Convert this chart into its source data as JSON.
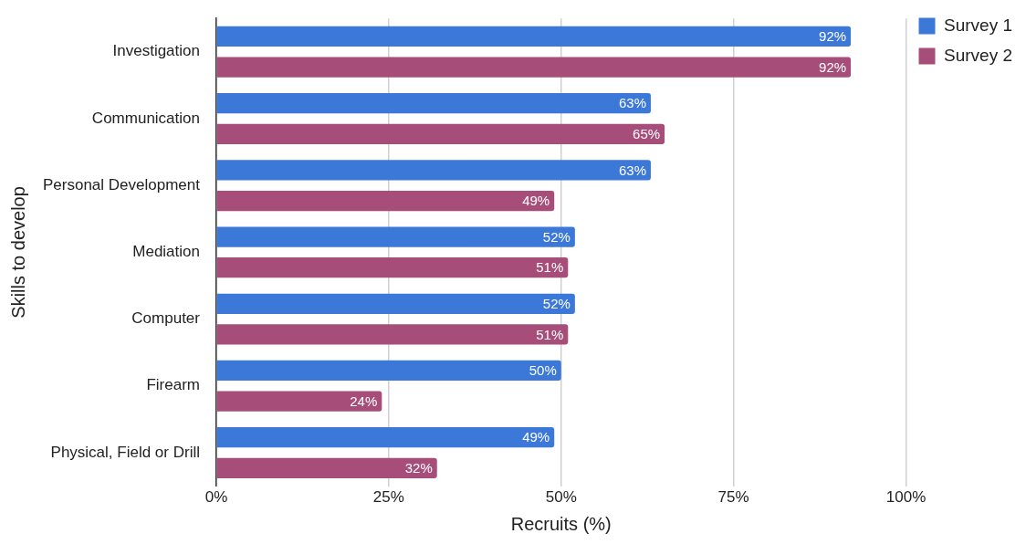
{
  "chart_data": {
    "type": "bar",
    "orientation": "horizontal",
    "xlabel": "Recruits (%)",
    "ylabel": "Skills to develop",
    "categories": [
      "Investigation",
      "Communication",
      "Personal Development",
      "Mediation",
      "Computer",
      "Firearm",
      "Physical, Field or Drill"
    ],
    "series": [
      {
        "name": "Survey 1",
        "color": "#3c78d8",
        "values": [
          92,
          63,
          63,
          52,
          52,
          50,
          49
        ],
        "value_labels": [
          "92%",
          "63%",
          "63%",
          "52%",
          "52%",
          "50%",
          "49%"
        ]
      },
      {
        "name": "Survey 2",
        "color": "#a64d79",
        "values": [
          92,
          65,
          49,
          51,
          51,
          24,
          32
        ],
        "value_labels": [
          "92%",
          "65%",
          "49%",
          "51%",
          "51%",
          "24%",
          "32%"
        ]
      }
    ],
    "xlim": [
      0,
      100
    ],
    "xticks": [
      {
        "value": 0,
        "label": "0%"
      },
      {
        "value": 25,
        "label": "25%"
      },
      {
        "value": 50,
        "label": "50%"
      },
      {
        "value": 75,
        "label": "75%"
      },
      {
        "value": 100,
        "label": "100%"
      }
    ],
    "grid": "x",
    "legend": "top right"
  }
}
